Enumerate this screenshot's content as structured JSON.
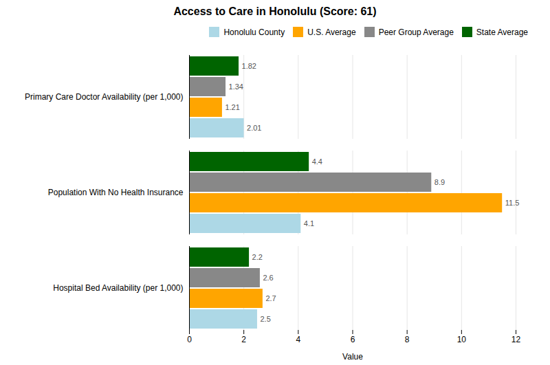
{
  "chart_data": {
    "type": "bar",
    "orientation": "horizontal",
    "title": "Access to Care in Honolulu (Score: 61)",
    "xlabel": "Value",
    "categories": [
      "Hospital Bed Availability (per 1,000)",
      "Population With No Health Insurance",
      "Primary Care Doctor Availability (per 1,000)"
    ],
    "series": [
      {
        "name": "Honolulu County",
        "color": "#ADD8E6",
        "values": [
          2.5,
          4.1,
          2.01
        ]
      },
      {
        "name": "U.S. Average",
        "color": "#FFA500",
        "values": [
          2.7,
          11.5,
          1.21
        ]
      },
      {
        "name": "Peer Group Average",
        "color": "#888888",
        "values": [
          2.6,
          8.9,
          1.34
        ]
      },
      {
        "name": "State Average",
        "color": "#006400",
        "values": [
          2.2,
          4.4,
          1.82
        ]
      }
    ],
    "xlim": [
      0,
      12
    ],
    "xticks": [
      0,
      2,
      4,
      6,
      8,
      10,
      12
    ],
    "grid": true,
    "legend": "upper right",
    "data_labels": true
  }
}
